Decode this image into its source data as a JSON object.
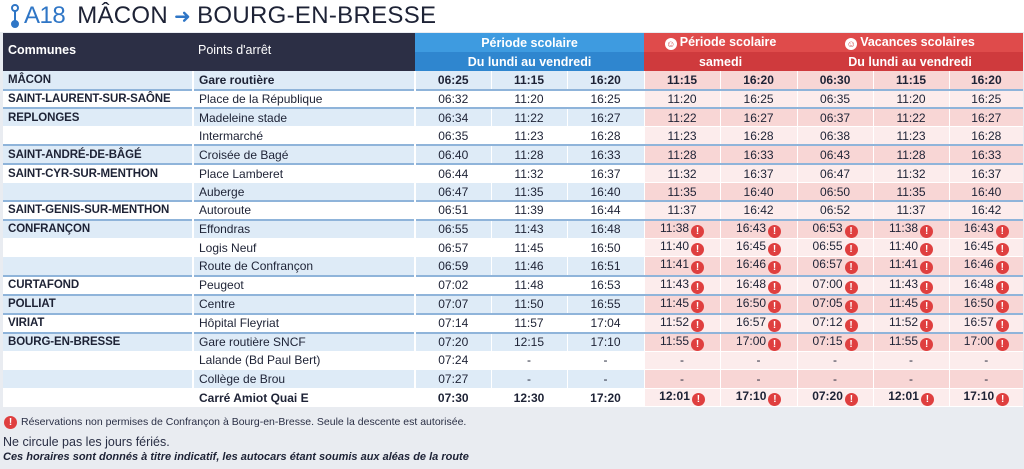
{
  "header": {
    "line_code": "A18",
    "origin": "MÂCON",
    "destination": "BOURG-EN-BRESSE"
  },
  "columns": {
    "communes": "Communes",
    "stops": "Points d'arrêt",
    "groups": [
      {
        "label": "Période scolaire",
        "sub": "Du lundi au vendredi",
        "icon": ""
      },
      {
        "label": "Période scolaire",
        "sub": "samedi",
        "icon": "smile-icon"
      },
      {
        "label": "Vacances scolaires",
        "sub": "Du lundi au vendredi",
        "icon": "smile-icon"
      }
    ],
    "icon_glyph": "☺"
  },
  "rows": [
    {
      "commune": "MÂCON",
      "stop": "Gare routière",
      "times": [
        "06:25",
        "11:15",
        "16:20",
        "11:15",
        "16:20",
        "06:30",
        "11:15",
        "16:20"
      ],
      "flags": [
        0,
        0,
        0,
        0,
        0,
        0,
        0,
        0
      ]
    },
    {
      "commune": "SAINT-LAURENT-SUR-SAÔNE",
      "stop": "Place de la République",
      "times": [
        "06:32",
        "11:20",
        "16:25",
        "11:20",
        "16:25",
        "06:35",
        "11:20",
        "16:25"
      ],
      "flags": [
        0,
        0,
        0,
        0,
        0,
        0,
        0,
        0
      ]
    },
    {
      "commune": "REPLONGES",
      "stop": "Madeleine stade",
      "times": [
        "06:34",
        "11:22",
        "16:27",
        "11:22",
        "16:27",
        "06:37",
        "11:22",
        "16:27"
      ],
      "flags": [
        0,
        0,
        0,
        0,
        0,
        0,
        0,
        0
      ]
    },
    {
      "commune": "",
      "stop": "Intermarché",
      "times": [
        "06:35",
        "11:23",
        "16:28",
        "11:23",
        "16:28",
        "06:38",
        "11:23",
        "16:28"
      ],
      "flags": [
        0,
        0,
        0,
        0,
        0,
        0,
        0,
        0
      ]
    },
    {
      "commune": "SAINT-ANDRÉ-DE-BÂGÉ",
      "stop": "Croisée de Bagé",
      "times": [
        "06:40",
        "11:28",
        "16:33",
        "11:28",
        "16:33",
        "06:43",
        "11:28",
        "16:33"
      ],
      "flags": [
        0,
        0,
        0,
        0,
        0,
        0,
        0,
        0
      ]
    },
    {
      "commune": "SAINT-CYR-SUR-MENTHON",
      "stop": "Place Lamberet",
      "times": [
        "06:44",
        "11:32",
        "16:37",
        "11:32",
        "16:37",
        "06:47",
        "11:32",
        "16:37"
      ],
      "flags": [
        0,
        0,
        0,
        0,
        0,
        0,
        0,
        0
      ]
    },
    {
      "commune": "",
      "stop": "Auberge",
      "times": [
        "06:47",
        "11:35",
        "16:40",
        "11:35",
        "16:40",
        "06:50",
        "11:35",
        "16:40"
      ],
      "flags": [
        0,
        0,
        0,
        0,
        0,
        0,
        0,
        0
      ]
    },
    {
      "commune": "SAINT-GENIS-SUR-MENTHON",
      "stop": "Autoroute",
      "times": [
        "06:51",
        "11:39",
        "16:44",
        "11:37",
        "16:42",
        "06:52",
        "11:37",
        "16:42"
      ],
      "flags": [
        0,
        0,
        0,
        0,
        0,
        0,
        0,
        0
      ]
    },
    {
      "commune": "CONFRANÇON",
      "stop": "Effondras",
      "times": [
        "06:55",
        "11:43",
        "16:48",
        "11:38",
        "16:43",
        "06:53",
        "11:38",
        "16:43"
      ],
      "flags": [
        0,
        0,
        0,
        1,
        1,
        1,
        1,
        1
      ]
    },
    {
      "commune": "",
      "stop": "Logis Neuf",
      "times": [
        "06:57",
        "11:45",
        "16:50",
        "11:40",
        "16:45",
        "06:55",
        "11:40",
        "16:45"
      ],
      "flags": [
        0,
        0,
        0,
        1,
        1,
        1,
        1,
        1
      ]
    },
    {
      "commune": "",
      "stop": "Route de Confrançon",
      "times": [
        "06:59",
        "11:46",
        "16:51",
        "11:41",
        "16:46",
        "06:57",
        "11:41",
        "16:46"
      ],
      "flags": [
        0,
        0,
        0,
        1,
        1,
        1,
        1,
        1
      ]
    },
    {
      "commune": "CURTAFOND",
      "stop": "Peugeot",
      "times": [
        "07:02",
        "11:48",
        "16:53",
        "11:43",
        "16:48",
        "07:00",
        "11:43",
        "16:48"
      ],
      "flags": [
        0,
        0,
        0,
        1,
        1,
        1,
        1,
        1
      ]
    },
    {
      "commune": "POLLIAT",
      "stop": "Centre",
      "times": [
        "07:07",
        "11:50",
        "16:55",
        "11:45",
        "16:50",
        "07:05",
        "11:45",
        "16:50"
      ],
      "flags": [
        0,
        0,
        0,
        1,
        1,
        1,
        1,
        1
      ]
    },
    {
      "commune": "VIRIAT",
      "stop": "Hôpital Fleyriat",
      "times": [
        "07:14",
        "11:57",
        "17:04",
        "11:52",
        "16:57",
        "07:12",
        "11:52",
        "16:57"
      ],
      "flags": [
        0,
        0,
        0,
        1,
        1,
        1,
        1,
        1
      ]
    },
    {
      "commune": "BOURG-EN-BRESSE",
      "stop": "Gare routière SNCF",
      "times": [
        "07:20",
        "12:15",
        "17:10",
        "11:55",
        "17:00",
        "07:15",
        "11:55",
        "17:00"
      ],
      "flags": [
        0,
        0,
        0,
        1,
        1,
        1,
        1,
        1
      ]
    },
    {
      "commune": "",
      "stop": "Lalande (Bd Paul Bert)",
      "times": [
        "07:24",
        "-",
        "-",
        "-",
        "-",
        "-",
        "-",
        "-"
      ],
      "flags": [
        0,
        0,
        0,
        0,
        0,
        0,
        0,
        0
      ]
    },
    {
      "commune": "",
      "stop": "Collège de Brou",
      "times": [
        "07:27",
        "-",
        "-",
        "-",
        "-",
        "-",
        "-",
        "-"
      ],
      "flags": [
        0,
        0,
        0,
        0,
        0,
        0,
        0,
        0
      ]
    },
    {
      "commune": "",
      "stop": "Carré Amiot Quai E",
      "times": [
        "07:30",
        "12:30",
        "17:20",
        "12:01",
        "17:10",
        "07:20",
        "12:01",
        "17:10"
      ],
      "flags": [
        0,
        0,
        0,
        1,
        1,
        1,
        1,
        1
      ]
    }
  ],
  "alert_glyph": "!",
  "notes": {
    "reservation": "Réservations non permises de Confrançon à Bourg-en-Bresse. Seule la descente est autorisée.",
    "holidays": "Ne circule pas les jours fériés.",
    "disclaimer": "Ces horaires sont donnés à titre indicatif, les autocars étant soumis aux aléas de la route"
  },
  "colors": {
    "school_header": "#3e9be0",
    "holiday_header": "#df4b4b",
    "dark_header": "#2c2f45",
    "alert": "#df3f3f"
  }
}
